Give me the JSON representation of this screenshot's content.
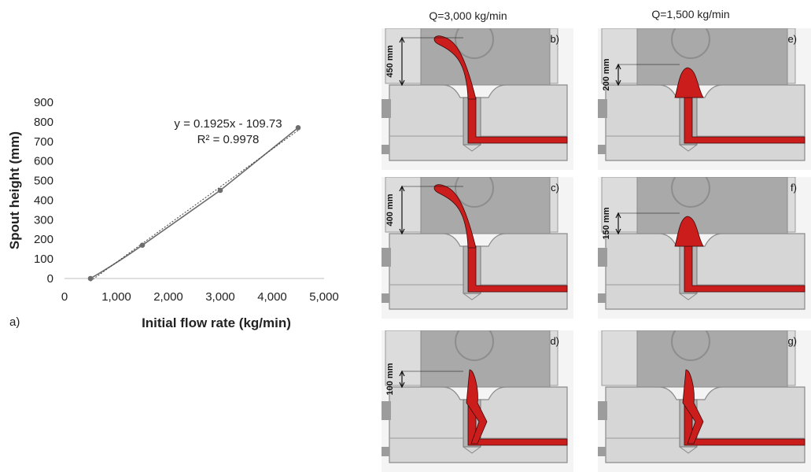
{
  "chart_data": {
    "type": "scatter",
    "title": "",
    "xlabel": "Initial flow rate (kg/min)",
    "ylabel": "Spout height (mm)",
    "xlim": [
      0,
      5000
    ],
    "ylim": [
      0,
      900
    ],
    "x_ticks": [
      "0",
      "1,000",
      "2,000",
      "3,000",
      "4,000",
      "5,000"
    ],
    "y_ticks": [
      "0",
      "100",
      "200",
      "300",
      "400",
      "500",
      "600",
      "700",
      "800",
      "900"
    ],
    "grid": false,
    "series": [
      {
        "x": [
          500,
          1500,
          3000,
          4500
        ],
        "y": [
          0,
          170,
          450,
          770
        ]
      }
    ],
    "trendline": {
      "type": "linear",
      "slope": 0.1925,
      "intercept": -109.73,
      "x_range": [
        500,
        4500
      ]
    },
    "annotations": [
      "y = 0.1925x - 109.73",
      "R² = 0.9978"
    ]
  },
  "panel_a_label": "a)",
  "columns": [
    {
      "title": "Q=3,000 kg/min"
    },
    {
      "title": "Q=1,500 kg/min"
    }
  ],
  "panels": [
    {
      "label": "b)",
      "height_label": "450 mm",
      "stream": "tall"
    },
    {
      "label": "c)",
      "height_label": "400 mm",
      "stream": "tall"
    },
    {
      "label": "d)",
      "height_label": "100 mm",
      "stream": "drain"
    },
    {
      "label": "e)",
      "height_label": "200 mm",
      "stream": "bulb"
    },
    {
      "label": "f)",
      "height_label": "150 mm",
      "stream": "bulb"
    },
    {
      "label": "g)",
      "height_label": "",
      "stream": "drain"
    }
  ],
  "colors": {
    "steel": "#cc1d1d",
    "mould": "#d6d6d6",
    "dark": "#8a8a8a"
  }
}
